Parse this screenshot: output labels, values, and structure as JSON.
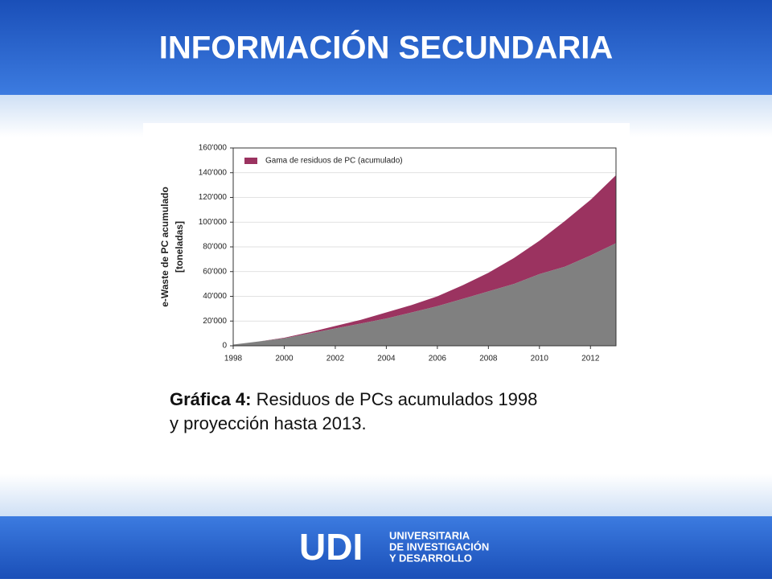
{
  "slide_title": "INFORMACIÓN SECUNDARIA",
  "chart_data": {
    "type": "area",
    "ylabel": [
      "e-Waste de PC acumulado",
      "[toneladas]"
    ],
    "x": [
      1998,
      1999,
      2000,
      2001,
      2002,
      2003,
      2004,
      2005,
      2006,
      2007,
      2008,
      2009,
      2010,
      2011,
      2012,
      2013
    ],
    "series": [
      {
        "color": "#808080",
        "values": [
          1000,
          3500,
          6000,
          10000,
          14000,
          18000,
          22000,
          27000,
          32000,
          38000,
          44000,
          50000,
          58000,
          64000,
          73000,
          83000
        ]
      },
      {
        "name": "Gama de residuos de PC (acumulado)",
        "color": "#9b3360",
        "values": [
          1000,
          3500,
          6500,
          11000,
          16000,
          21000,
          27000,
          33000,
          40000,
          49000,
          59000,
          71000,
          85000,
          101000,
          118000,
          138000
        ]
      }
    ],
    "xlim": [
      1998,
      2013
    ],
    "xticks": [
      1998,
      2000,
      2002,
      2004,
      2006,
      2008,
      2010,
      2012
    ],
    "ylim": [
      0,
      160000
    ],
    "yticks": [
      0,
      {
        "value": 20000,
        "label": "20'000"
      },
      {
        "value": 40000,
        "label": "40'000"
      },
      {
        "value": 60000,
        "label": "60'000"
      },
      {
        "value": 80000,
        "label": "80'000"
      },
      {
        "value": 100000,
        "label": "100'000"
      },
      {
        "value": 120000,
        "label": "120'000"
      },
      {
        "value": 140000,
        "label": "140'000"
      },
      {
        "value": 160000,
        "label": "160'000"
      }
    ],
    "grid": true,
    "legend": "upper left"
  },
  "caption": {
    "label": "Gráfica 4:",
    "text": [
      "Residuos de PCs acumulados 1998",
      "y proyección hasta 2013."
    ]
  },
  "footer": {
    "logo": "UDI",
    "lines": [
      "UNIVERSITARIA",
      "DE INVESTIGACIÓN",
      "Y DESARROLLO"
    ]
  }
}
